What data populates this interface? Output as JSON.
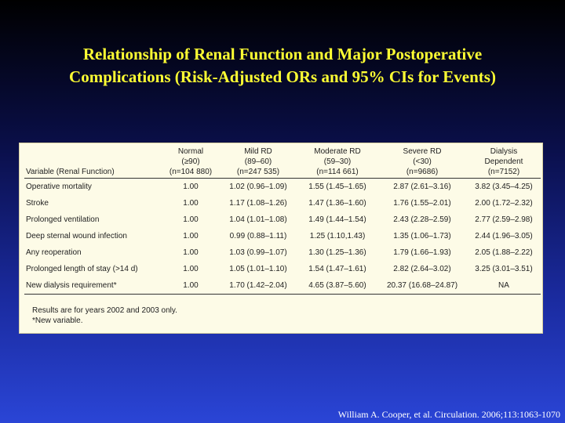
{
  "title": {
    "line1": "Relationship of Renal Function and Major Postoperative",
    "line2": "Complications (Risk-Adjusted ORs and 95% CIs for Events)"
  },
  "table": {
    "columns": [
      {
        "lines": [
          "",
          "",
          "Variable (Renal Function)"
        ]
      },
      {
        "lines": [
          "Normal",
          "(≥90)",
          "(n=104 880)"
        ]
      },
      {
        "lines": [
          "Mild RD",
          "(89–60)",
          "(n=247 535)"
        ]
      },
      {
        "lines": [
          "Moderate RD",
          "(59–30)",
          "(n=114 661)"
        ]
      },
      {
        "lines": [
          "Severe RD",
          "(<30)",
          "(n=9686)"
        ]
      },
      {
        "lines": [
          "Dialysis",
          "Dependent",
          "(n=7152)"
        ]
      }
    ],
    "rows": [
      [
        "Operative mortality",
        "1.00",
        "1.02 (0.96–1.09)",
        "1.55 (1.45–1.65)",
        "2.87 (2.61–3.16)",
        "3.82 (3.45–4.25)"
      ],
      [
        "Stroke",
        "1.00",
        "1.17 (1.08–1.26)",
        "1.47 (1.36–1.60)",
        "1.76 (1.55–2.01)",
        "2.00 (1.72–2.32)"
      ],
      [
        "Prolonged ventilation",
        "1.00",
        "1.04 (1.01–1.08)",
        "1.49 (1.44–1.54)",
        "2.43 (2.28–2.59)",
        "2.77 (2.59–2.98)"
      ],
      [
        "Deep sternal wound infection",
        "1.00",
        "0.99 (0.88–1.11)",
        "1.25 (1.10,1.43)",
        "1.35 (1.06–1.73)",
        "2.44 (1.96–3.05)"
      ],
      [
        "Any reoperation",
        "1.00",
        "1.03 (0.99–1.07)",
        "1.30 (1.25–1.36)",
        "1.79 (1.66–1.93)",
        "2.05 (1.88–2.22)"
      ],
      [
        "Prolonged length of stay (>14 d)",
        "1.00",
        "1.05 (1.01–1.10)",
        "1.54 (1.47–1.61)",
        "2.82 (2.64–3.02)",
        "3.25 (3.01–3.51)"
      ],
      [
        "New dialysis requirement*",
        "1.00",
        "1.70 (1.42–2.04)",
        "4.65 (3.87–5.60)",
        "20.37 (16.68–24.87)",
        "NA"
      ]
    ],
    "notes": [
      "Results are for years 2002 and 2003 only.",
      "*New variable."
    ]
  },
  "citation": "William A. Cooper, et al. Circulation. 2006;113:1063-1070"
}
